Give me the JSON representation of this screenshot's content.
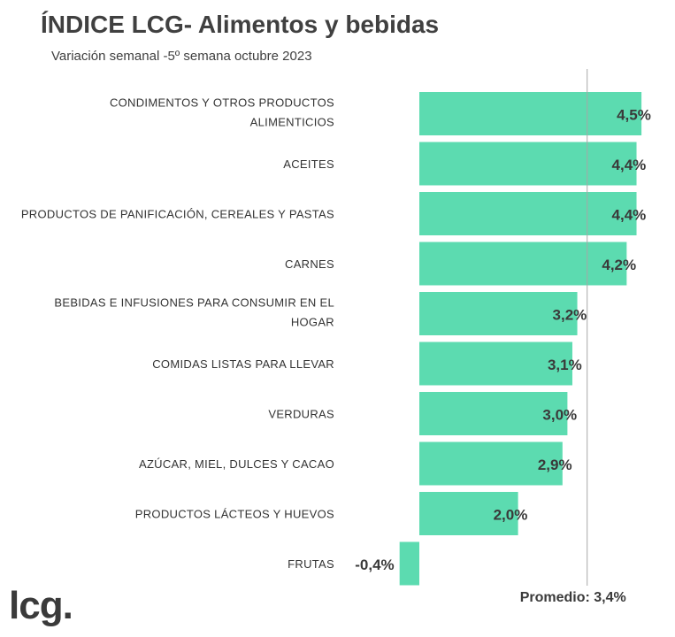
{
  "header": {
    "title": "ÍNDICE LCG- Alimentos y bebidas",
    "subtitle": "Variación semanal -5º semana octubre 2023"
  },
  "logo": {
    "text": "lcg."
  },
  "chart_data": {
    "type": "bar",
    "orientation": "horizontal",
    "categories": [
      [
        "CONDIMENTOS Y OTROS PRODUCTOS",
        "ALIMENTICIOS"
      ],
      [
        "ACEITES"
      ],
      [
        "PRODUCTOS DE PANIFICACIÓN, CEREALES Y PASTAS"
      ],
      [
        "CARNES"
      ],
      [
        "BEBIDAS E INFUSIONES PARA CONSUMIR EN EL",
        "HOGAR"
      ],
      [
        "COMIDAS LISTAS PARA LLEVAR"
      ],
      [
        "VERDURAS"
      ],
      [
        "AZÚCAR, MIEL, DULCES Y CACAO"
      ],
      [
        "PRODUCTOS LÁCTEOS Y HUEVOS"
      ],
      [
        "FRUTAS"
      ]
    ],
    "values": [
      4.5,
      4.4,
      4.4,
      4.2,
      3.2,
      3.1,
      3.0,
      2.9,
      2.0,
      -0.4
    ],
    "value_labels": [
      "4,5%",
      "4,4%",
      "4,4%",
      "4,2%",
      "3,2%",
      "3,1%",
      "3,0%",
      "2,9%",
      "2,0%",
      "-0,4%"
    ],
    "average": {
      "value": 3.4,
      "label": "Promedio: 3,4%"
    },
    "bar_color": "#5cdbb0",
    "line_color": "#a6a6a6",
    "grid": false,
    "legend": "none"
  }
}
